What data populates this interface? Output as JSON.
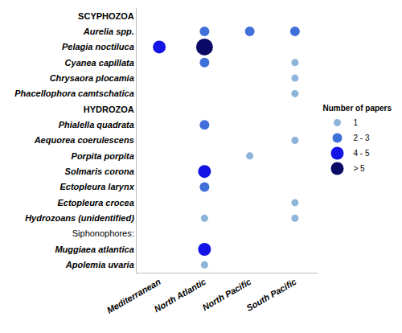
{
  "chart_data": {
    "type": "scatter",
    "x_categories": [
      "Mediterranean",
      "North Atlantic",
      "North Pacific",
      "South Pacific"
    ],
    "rows": [
      "SCYPHOZOA",
      "Aurelia spp.",
      "Pelagia noctiluca",
      "Cyanea capillata",
      "Chrysaora plocamia",
      "Phacellophora camtschatica",
      "HYDROZOA",
      "Phialella quadrata",
      "Aequorea coerulescens",
      "Porpita porpita",
      "Solmaris corona",
      "Ectopleura larynx",
      "Ectopleura crocea",
      "Hydrozoans (unidentified)",
      "Siphonophores:",
      "Muggiaea atlantica",
      "Apolemia uvaria"
    ],
    "groups": [
      "SCYPHOZOA",
      "HYDROZOA"
    ],
    "subgroups": [
      "Siphonophores:"
    ],
    "legend_title": "Number of papers",
    "legend": "right",
    "series": [
      {
        "name": "1",
        "color": "#8db4d9",
        "points": [
          [
            "Cyanea capillata",
            "South Pacific"
          ],
          [
            "Chrysaora plocamia",
            "South Pacific"
          ],
          [
            "Phacellophora camtschatica",
            "South Pacific"
          ],
          [
            "Aequorea coerulescens",
            "South Pacific"
          ],
          [
            "Porpita porpita",
            "North Pacific"
          ],
          [
            "Ectopleura crocea",
            "South Pacific"
          ],
          [
            "Hydrozoans (unidentified)",
            "North Atlantic"
          ],
          [
            "Hydrozoans (unidentified)",
            "South Pacific"
          ],
          [
            "Apolemia uvaria",
            "North Atlantic"
          ]
        ]
      },
      {
        "name": "2 - 3",
        "color": "#3f6fd8",
        "points": [
          [
            "Aurelia spp.",
            "North Atlantic"
          ],
          [
            "Aurelia spp.",
            "North Pacific"
          ],
          [
            "Aurelia spp.",
            "South Pacific"
          ],
          [
            "Cyanea capillata",
            "North Atlantic"
          ],
          [
            "Phialella quadrata",
            "North Atlantic"
          ],
          [
            "Ectopleura larynx",
            "North Atlantic"
          ]
        ]
      },
      {
        "name": "4 - 5",
        "color": "#1414e6",
        "points": [
          [
            "Pelagia noctiluca",
            "Mediterranean"
          ],
          [
            "Solmaris corona",
            "North Atlantic"
          ],
          [
            "Muggiaea atlantica",
            "North Atlantic"
          ]
        ]
      },
      {
        "name": "> 5",
        "color": "#0a0a66",
        "points": [
          [
            "Pelagia noctiluca",
            "North Atlantic"
          ]
        ]
      }
    ]
  }
}
